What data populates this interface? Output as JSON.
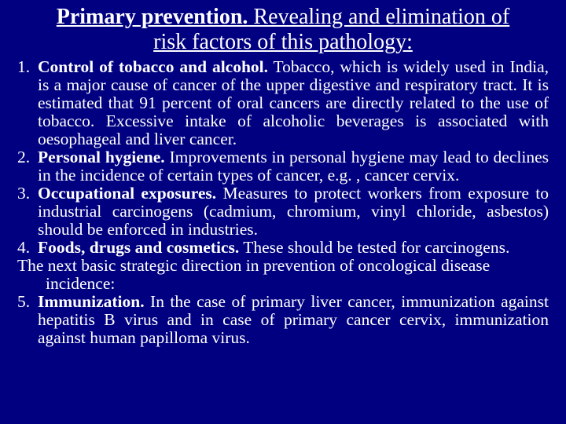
{
  "title": {
    "lead": "Primary prevention.",
    "rest": " Revealing and elimination of risk factors of this pathology:"
  },
  "items": [
    {
      "num": "1.",
      "heading": "Control of tobacco and alcohol.",
      "text": " Tobacco, which is widely used in India, is a major cause of cancer of the upper digestive and respiratory tract. It is estimated that 91 percent of oral cancers are directly related to the use of tobacco. Excessive intake of alcoholic beverages is associated with oesophageal and liver cancer."
    },
    {
      "num": "2.",
      "heading": "Personal hygiene.",
      "text": " Improvements in personal hygiene may lead to declines in the incidence of certain types of cancer, e.g. , cancer cervix."
    },
    {
      "num": "3.",
      "heading": "Occupational exposures.",
      "text": " Measures to protect workers from exposure to industrial carcinogens (cadmium, chromium, vinyl chloride, asbestos) should be enforced in industries."
    },
    {
      "num": "4.",
      "heading": "Foods, drugs and cosmetics.",
      "text": " These should be tested for carcinogens."
    }
  ],
  "bridge": "The next basic strategic direction in prevention of oncological disease incidence:",
  "item5": {
    "num": "5.",
    "heading": "Immunization.",
    "text": " In the case of primary liver cancer, immunization against hepatitis B virus and in case of primary cancer cervix, immunization against human papilloma virus."
  },
  "colors": {
    "background": "#000080",
    "text": "#ffffff"
  },
  "typography": {
    "title_fontsize": 28,
    "body_fontsize": 21.5,
    "font_family": "Times New Roman"
  }
}
